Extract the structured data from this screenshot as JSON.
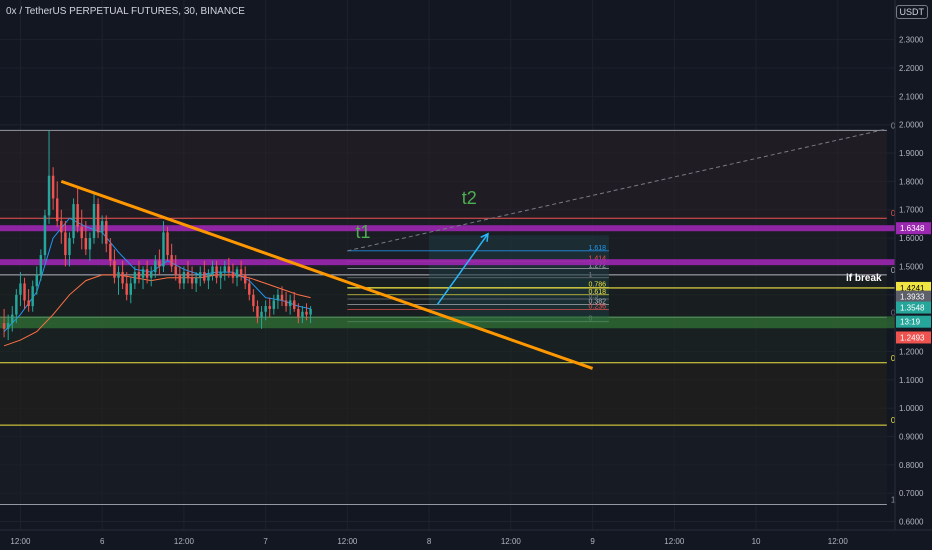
{
  "header": {
    "title": "0x / TetherUS PERPETUAL FUTURES, 30, BINANCE",
    "currency": "USDT"
  },
  "colors": {
    "background": "#131722",
    "up": "#26a69a",
    "down": "#ef5350",
    "trendline": "#ff9800",
    "resistance": "#9c27b0",
    "support": "#388e3c",
    "fib_yellow": "#f0e442",
    "arrow": "#29b6f6",
    "label_green": "#4caf50"
  },
  "chart_data": {
    "type": "candlestick",
    "y_axis": {
      "ticks": [
        "2.3000",
        "2.2000",
        "2.1000",
        "2.0000",
        "1.9000",
        "1.8000",
        "1.7000",
        "1.6000",
        "1.5000",
        "1.4000",
        "1.3000",
        "1.2000",
        "1.1000",
        "1.0000",
        "0.9000",
        "0.8000",
        "0.7000",
        "0.6000"
      ],
      "tick_values": [
        2.3,
        2.2,
        2.1,
        2.0,
        1.9,
        1.8,
        1.7,
        1.6,
        1.5,
        1.4,
        1.3,
        1.2,
        1.1,
        1.0,
        0.9,
        0.8,
        0.7,
        0.6
      ],
      "range": [
        0.57,
        2.44
      ]
    },
    "x_axis": {
      "labels": [
        "12:00",
        "6",
        "12:00",
        "7",
        "12:00",
        "8",
        "12:00",
        "9",
        "12:00",
        "10",
        "12:00"
      ],
      "label_positions": [
        1.0,
        2.0,
        3.0,
        4.0,
        5.0,
        6.0,
        7.0,
        8.0,
        9.0,
        10.0,
        11.0
      ],
      "range": [
        0.75,
        11.7
      ]
    },
    "price_labels": [
      {
        "value": 1.6348,
        "text": "1.6348",
        "color": "#9c27b0"
      },
      {
        "value": 1.4241,
        "text": "1.4241",
        "color": "#f0e442"
      },
      {
        "value": 1.3933,
        "text": "1.3933",
        "color": "#5d606b"
      },
      {
        "value": 1.3548,
        "text": "1.3548",
        "color": "#26a69a"
      },
      {
        "value": 1.305,
        "text": "13:19",
        "color": "#26a69a"
      },
      {
        "value": 1.2493,
        "text": "1.2493",
        "color": "#ef5350"
      }
    ],
    "fib_levels": [
      {
        "level": "0",
        "value": 1.98,
        "color": "#9598a1"
      },
      {
        "level": "0.236",
        "value": 1.67,
        "color": "#ef5350"
      },
      {
        "level": "0.382",
        "value": 1.47,
        "color": "#b2b5be"
      },
      {
        "level": "0.5",
        "value": 1.32,
        "color": "#787b86"
      },
      {
        "level": "0.618",
        "value": 1.16,
        "color": "#f0e442"
      },
      {
        "level": "0.786",
        "value": 0.94,
        "color": "#f0e442"
      },
      {
        "level": "1",
        "value": 0.66,
        "color": "#9598a1"
      }
    ],
    "fib_extension_levels": [
      {
        "level": "1.618",
        "value": 1.555,
        "color": "#2196f3"
      },
      {
        "level": "1.414",
        "value": 1.518,
        "color": "#ef5350"
      },
      {
        "level": "1.272",
        "value": 1.493,
        "color": "#b2b5be"
      },
      {
        "level": "1",
        "value": 1.46,
        "color": "#787b86"
      },
      {
        "level": "0.786",
        "value": 1.425,
        "color": "#f0e442"
      },
      {
        "level": "0.618",
        "value": 1.4,
        "color": "#f0e442"
      },
      {
        "level": "0.5",
        "value": 1.385,
        "color": "#787b86"
      },
      {
        "level": "0.382",
        "value": 1.366,
        "color": "#b2b5be"
      },
      {
        "level": "0.236",
        "value": 1.348,
        "color": "#ef5350"
      },
      {
        "level": "0",
        "value": 1.305,
        "color": "#787b86"
      }
    ],
    "horizontal_bands": [
      {
        "name": "purple-upper",
        "value": 1.6348,
        "color": "#9c27b0"
      },
      {
        "name": "purple-lower",
        "value": 1.515,
        "color": "#9c27b0"
      },
      {
        "name": "green-support",
        "value": 1.303,
        "color": "#388e3c"
      }
    ],
    "break_line": {
      "value": 1.4241,
      "label": "if break"
    },
    "trendline": {
      "start": [
        1.5,
        1.8
      ],
      "end": [
        8.0,
        1.14
      ]
    },
    "projection_dashed": {
      "start": [
        5.0,
        1.555
      ],
      "end": [
        11.6,
        1.985
      ]
    },
    "arrow": {
      "start": [
        6.1,
        1.365
      ],
      "end": [
        6.72,
        1.615
      ]
    },
    "annotations": [
      {
        "text": "t1",
        "x": 5.1,
        "y": 1.6
      },
      {
        "text": "t2",
        "x": 6.4,
        "y": 1.72
      }
    ],
    "candles": [
      [
        0.8,
        1.3,
        1.35,
        1.25,
        1.28
      ],
      [
        0.85,
        1.28,
        1.33,
        1.24,
        1.3
      ],
      [
        0.9,
        1.3,
        1.36,
        1.27,
        1.33
      ],
      [
        0.95,
        1.33,
        1.42,
        1.3,
        1.4
      ],
      [
        1.0,
        1.4,
        1.48,
        1.36,
        1.44
      ],
      [
        1.05,
        1.44,
        1.46,
        1.35,
        1.38
      ],
      [
        1.1,
        1.38,
        1.42,
        1.34,
        1.36
      ],
      [
        1.15,
        1.36,
        1.45,
        1.34,
        1.43
      ],
      [
        1.2,
        1.43,
        1.5,
        1.4,
        1.47
      ],
      [
        1.25,
        1.47,
        1.56,
        1.45,
        1.54
      ],
      [
        1.3,
        1.54,
        1.7,
        1.52,
        1.68
      ],
      [
        1.35,
        1.68,
        1.98,
        1.65,
        1.82
      ],
      [
        1.4,
        1.82,
        1.85,
        1.7,
        1.74
      ],
      [
        1.45,
        1.74,
        1.8,
        1.64,
        1.66
      ],
      [
        1.5,
        1.66,
        1.7,
        1.58,
        1.62
      ],
      [
        1.55,
        1.62,
        1.66,
        1.5,
        1.54
      ],
      [
        1.6,
        1.54,
        1.62,
        1.5,
        1.6
      ],
      [
        1.65,
        1.6,
        1.74,
        1.58,
        1.72
      ],
      [
        1.7,
        1.72,
        1.78,
        1.62,
        1.64
      ],
      [
        1.75,
        1.64,
        1.7,
        1.56,
        1.6
      ],
      [
        1.8,
        1.6,
        1.66,
        1.54,
        1.56
      ],
      [
        1.85,
        1.56,
        1.62,
        1.52,
        1.6
      ],
      [
        1.9,
        1.6,
        1.76,
        1.58,
        1.72
      ],
      [
        1.95,
        1.72,
        1.74,
        1.6,
        1.62
      ],
      [
        2.0,
        1.62,
        1.68,
        1.58,
        1.66
      ],
      [
        2.05,
        1.66,
        1.68,
        1.55,
        1.58
      ],
      [
        2.1,
        1.58,
        1.6,
        1.5,
        1.52
      ],
      [
        2.15,
        1.52,
        1.56,
        1.44,
        1.46
      ],
      [
        2.2,
        1.46,
        1.5,
        1.4,
        1.48
      ],
      [
        2.25,
        1.48,
        1.52,
        1.42,
        1.44
      ],
      [
        2.3,
        1.44,
        1.48,
        1.38,
        1.4
      ],
      [
        2.35,
        1.4,
        1.46,
        1.37,
        1.44
      ],
      [
        2.4,
        1.44,
        1.5,
        1.42,
        1.48
      ],
      [
        2.45,
        1.48,
        1.52,
        1.44,
        1.46
      ],
      [
        2.5,
        1.46,
        1.5,
        1.42,
        1.49
      ],
      [
        2.55,
        1.49,
        1.52,
        1.44,
        1.46
      ],
      [
        2.6,
        1.46,
        1.5,
        1.43,
        1.48
      ],
      [
        2.65,
        1.48,
        1.54,
        1.46,
        1.52
      ],
      [
        2.7,
        1.52,
        1.56,
        1.47,
        1.5
      ],
      [
        2.75,
        1.5,
        1.66,
        1.48,
        1.62
      ],
      [
        2.8,
        1.62,
        1.64,
        1.52,
        1.54
      ],
      [
        2.85,
        1.54,
        1.58,
        1.48,
        1.5
      ],
      [
        2.9,
        1.5,
        1.54,
        1.45,
        1.47
      ],
      [
        2.95,
        1.47,
        1.5,
        1.42,
        1.44
      ],
      [
        3.0,
        1.44,
        1.5,
        1.42,
        1.48
      ],
      [
        3.05,
        1.48,
        1.52,
        1.44,
        1.46
      ],
      [
        3.1,
        1.46,
        1.5,
        1.42,
        1.44
      ],
      [
        3.15,
        1.44,
        1.48,
        1.41,
        1.46
      ],
      [
        3.2,
        1.46,
        1.5,
        1.43,
        1.48
      ],
      [
        3.25,
        1.48,
        1.52,
        1.44,
        1.45
      ],
      [
        3.3,
        1.45,
        1.49,
        1.42,
        1.47
      ],
      [
        3.35,
        1.47,
        1.52,
        1.45,
        1.5
      ],
      [
        3.4,
        1.5,
        1.52,
        1.44,
        1.46
      ],
      [
        3.45,
        1.46,
        1.5,
        1.42,
        1.48
      ],
      [
        3.5,
        1.48,
        1.52,
        1.45,
        1.5
      ],
      [
        3.55,
        1.5,
        1.53,
        1.46,
        1.48
      ],
      [
        3.6,
        1.48,
        1.51,
        1.44,
        1.46
      ],
      [
        3.65,
        1.46,
        1.5,
        1.43,
        1.49
      ],
      [
        3.7,
        1.49,
        1.52,
        1.45,
        1.47
      ],
      [
        3.75,
        1.47,
        1.5,
        1.42,
        1.44
      ],
      [
        3.8,
        1.44,
        1.46,
        1.38,
        1.4
      ],
      [
        3.85,
        1.4,
        1.42,
        1.34,
        1.36
      ],
      [
        3.9,
        1.36,
        1.38,
        1.3,
        1.32
      ],
      [
        3.95,
        1.32,
        1.36,
        1.28,
        1.34
      ],
      [
        4.0,
        1.34,
        1.38,
        1.31,
        1.36
      ],
      [
        4.05,
        1.36,
        1.39,
        1.32,
        1.35
      ],
      [
        4.1,
        1.35,
        1.4,
        1.33,
        1.38
      ],
      [
        4.15,
        1.38,
        1.42,
        1.35,
        1.4
      ],
      [
        4.2,
        1.4,
        1.43,
        1.36,
        1.38
      ],
      [
        4.25,
        1.38,
        1.41,
        1.34,
        1.36
      ],
      [
        4.3,
        1.36,
        1.4,
        1.33,
        1.38
      ],
      [
        4.35,
        1.38,
        1.41,
        1.34,
        1.35
      ],
      [
        4.4,
        1.35,
        1.37,
        1.3,
        1.32
      ],
      [
        4.45,
        1.32,
        1.36,
        1.3,
        1.34
      ],
      [
        4.5,
        1.34,
        1.37,
        1.31,
        1.33
      ],
      [
        4.55,
        1.33,
        1.36,
        1.3,
        1.35
      ]
    ],
    "indicators": [
      {
        "name": "blue-line",
        "color": "#2196f3",
        "points": [
          [
            0.8,
            1.27
          ],
          [
            1.0,
            1.33
          ],
          [
            1.2,
            1.41
          ],
          [
            1.4,
            1.6
          ],
          [
            1.6,
            1.67
          ],
          [
            1.8,
            1.64
          ],
          [
            2.0,
            1.62
          ],
          [
            2.2,
            1.55
          ],
          [
            2.4,
            1.49
          ],
          [
            2.6,
            1.48
          ],
          [
            2.8,
            1.52
          ],
          [
            3.0,
            1.49
          ],
          [
            3.2,
            1.47
          ],
          [
            3.4,
            1.48
          ],
          [
            3.6,
            1.48
          ],
          [
            3.8,
            1.45
          ],
          [
            4.0,
            1.39
          ],
          [
            4.2,
            1.38
          ],
          [
            4.4,
            1.36
          ],
          [
            4.55,
            1.35
          ]
        ]
      },
      {
        "name": "orange-line",
        "color": "#ff7043",
        "points": [
          [
            0.8,
            1.22
          ],
          [
            1.0,
            1.24
          ],
          [
            1.2,
            1.27
          ],
          [
            1.4,
            1.33
          ],
          [
            1.6,
            1.4
          ],
          [
            1.8,
            1.45
          ],
          [
            2.0,
            1.47
          ],
          [
            2.2,
            1.47
          ],
          [
            2.4,
            1.46
          ],
          [
            2.6,
            1.45
          ],
          [
            2.8,
            1.46
          ],
          [
            3.0,
            1.46
          ],
          [
            3.2,
            1.46
          ],
          [
            3.4,
            1.47
          ],
          [
            3.6,
            1.47
          ],
          [
            3.8,
            1.46
          ],
          [
            4.0,
            1.44
          ],
          [
            4.2,
            1.42
          ],
          [
            4.4,
            1.4
          ],
          [
            4.55,
            1.39
          ]
        ]
      }
    ]
  }
}
